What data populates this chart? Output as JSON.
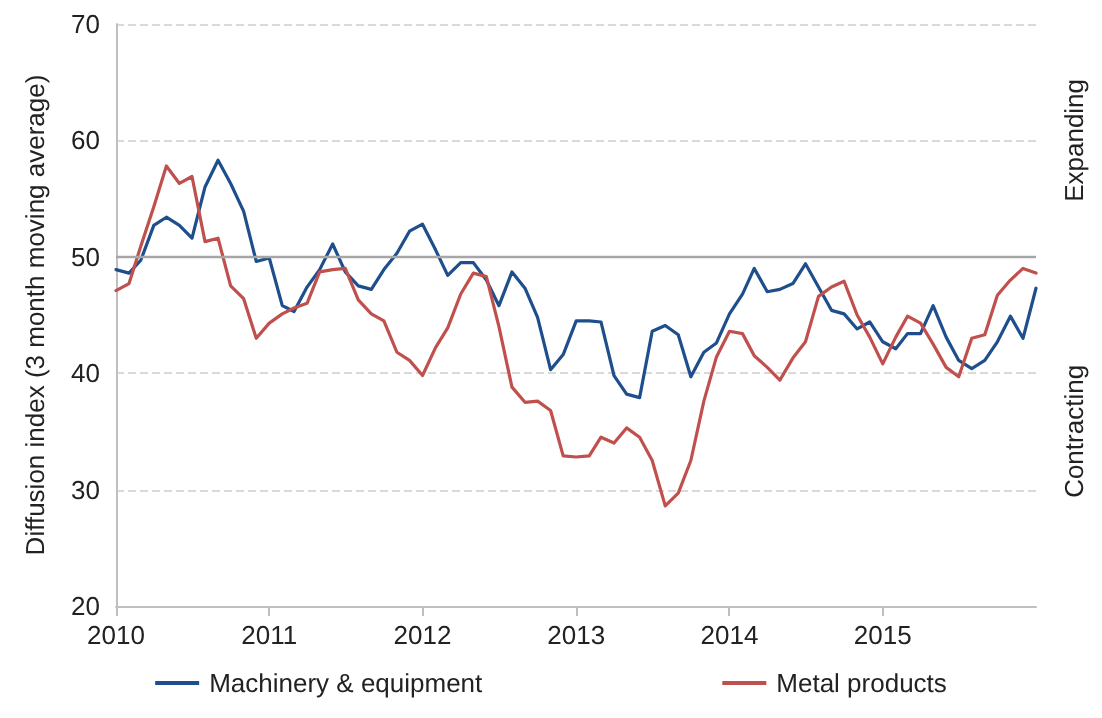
{
  "chart_data": {
    "type": "line",
    "ylabel": "Diffusion index (3 month moving average)",
    "x": [
      "2010-01",
      "2010-02",
      "2010-03",
      "2010-04",
      "2010-05",
      "2010-06",
      "2010-07",
      "2010-08",
      "2010-09",
      "2010-10",
      "2010-11",
      "2010-12",
      "2011-01",
      "2011-02",
      "2011-03",
      "2011-04",
      "2011-05",
      "2011-06",
      "2011-07",
      "2011-08",
      "2011-09",
      "2011-10",
      "2011-11",
      "2011-12",
      "2012-01",
      "2012-02",
      "2012-03",
      "2012-04",
      "2012-05",
      "2012-06",
      "2012-07",
      "2012-08",
      "2012-09",
      "2012-10",
      "2012-11",
      "2012-12",
      "2013-01",
      "2013-02",
      "2013-03",
      "2013-04",
      "2013-05",
      "2013-06",
      "2013-07",
      "2013-08",
      "2013-09",
      "2013-10",
      "2013-11",
      "2013-12",
      "2014-01",
      "2014-02",
      "2014-03",
      "2014-04",
      "2014-05",
      "2014-06",
      "2014-07",
      "2014-08",
      "2014-09",
      "2014-10",
      "2014-11",
      "2014-12",
      "2015-01",
      "2015-02",
      "2015-03",
      "2015-04",
      "2015-05",
      "2015-06",
      "2015-07",
      "2015-08",
      "2015-09",
      "2015-10",
      "2015-11",
      "2015-12",
      "2016-01"
    ],
    "series": [
      {
        "name": "Machinery & equipment",
        "color": "#1f4e8c",
        "values": [
          48.9,
          48.6,
          49.7,
          52.7,
          53.4,
          52.7,
          51.6,
          56,
          58.3,
          56.3,
          53.9,
          49.6,
          49.9,
          45.8,
          45.3,
          47.4,
          48.9,
          51.1,
          48.7,
          47.5,
          47.2,
          48.9,
          50.3,
          52.2,
          52.8,
          50.6,
          48.4,
          49.5,
          49.5,
          48,
          45.8,
          48.7,
          47.3,
          44.8,
          40.3,
          41.6,
          44.5,
          44.5,
          44.4,
          39.8,
          38.2,
          37.9,
          43.6,
          44.1,
          43.3,
          39.7,
          41.8,
          42.6,
          45.1,
          46.8,
          49,
          47,
          47.2,
          47.7,
          49.4,
          47.4,
          45.4,
          45.1,
          43.8,
          44.4,
          42.7,
          42.1,
          43.4,
          43.4,
          45.8,
          43.1,
          41.1,
          40.4,
          41.1,
          42.7,
          44.9,
          43,
          47.3
        ]
      },
      {
        "name": "Metal products",
        "color": "#c0504d",
        "values": [
          47.1,
          47.7,
          50.9,
          54.3,
          57.8,
          56.3,
          56.9,
          51.3,
          51.6,
          47.5,
          46.4,
          43,
          44.3,
          45.1,
          45.6,
          46,
          48.7,
          48.9,
          49,
          46.3,
          45.1,
          44.5,
          41.8,
          41.1,
          39.8,
          42.2,
          43.9,
          46.8,
          48.6,
          48.3,
          44,
          38.8,
          37.5,
          37.6,
          36.8,
          32.9,
          32.8,
          32.9,
          34.5,
          34,
          35.3,
          34.5,
          32.5,
          28.6,
          29.7,
          32.5,
          37.6,
          41.4,
          43.6,
          43.4,
          41.5,
          40.5,
          39.4,
          41.3,
          42.7,
          46.6,
          47.4,
          47.9,
          45,
          43.1,
          40.8,
          43.1,
          44.9,
          44.3,
          42.5,
          40.5,
          39.7,
          43,
          43.3,
          46.7,
          48,
          49,
          48.6
        ]
      }
    ],
    "xlim": [
      "2010-01",
      "2016-01"
    ],
    "xticks": [
      "2010",
      "2011",
      "2012",
      "2013",
      "2014",
      "2015"
    ],
    "ylim": [
      20,
      70
    ],
    "yticks": [
      20,
      30,
      40,
      50,
      60,
      70
    ],
    "ref_lines": [
      {
        "axis": "y",
        "value": 50,
        "color": "#a6a6a6"
      }
    ],
    "annotations": [
      "Expanding",
      "Contracting"
    ],
    "grid": "y",
    "legend": "bottom",
    "marker": "none",
    "line_style": "solid"
  }
}
